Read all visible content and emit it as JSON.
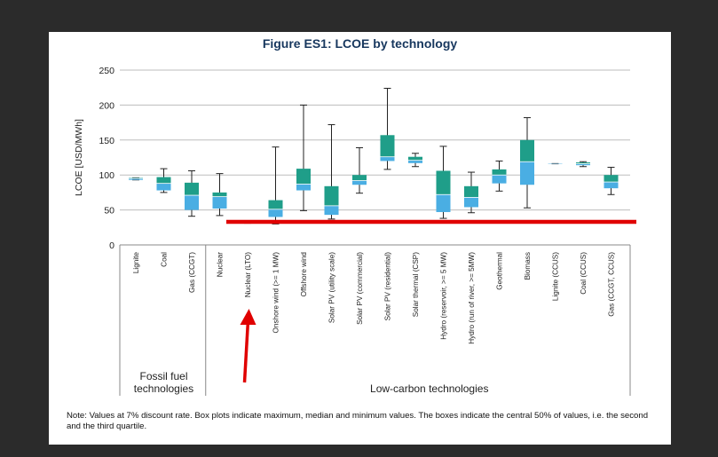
{
  "figure": {
    "title": "Figure ES1: LCOE by technology",
    "note": "Note: Values at 7% discount rate. Box plots indicate maximum, median and minimum values. The boxes indicate the central 50% of values, i.e. the second and the third quartile."
  },
  "chart_data": {
    "type": "box",
    "title": "Figure ES1: LCOE by technology",
    "ylabel": "LCOE [USD/MWh]",
    "xlabel": "",
    "ylim": [
      0,
      250
    ],
    "yticks": [
      0,
      50,
      100,
      150,
      200,
      250
    ],
    "grid": true,
    "colors": {
      "lower_box": "#4aaee3",
      "upper_box": "#1f9e89",
      "whisker": "#222222",
      "threshold_line": "#e00000",
      "arrow": "#e00000",
      "title": "#17375e"
    },
    "groups": [
      {
        "label": "Fossil fuel technologies",
        "start": 0,
        "end": 2
      },
      {
        "label": "Low-carbon technologies",
        "start": 3,
        "end": 18
      }
    ],
    "categories": [
      "Lignite",
      "Coal",
      "Gas (CCGT)",
      "Nuclear",
      "Nuclear (LTO)",
      "Onshore wind (>= 1 MW)",
      "Offshore wind",
      "Solar PV (utility scale)",
      "Solar PV (commercial)",
      "Solar PV (residential)",
      "Solar thermal (CSP)",
      "Hydro (reservoir, >= 5 MW)",
      "Hydro (run of river, >= 5MW)",
      "Geothermal",
      "Biomass",
      "Lignite (CCUS)",
      "Coal (CCUS)",
      "Gas (CCGT, CCUS)"
    ],
    "boxes": [
      {
        "min": 93,
        "q1": 93,
        "median": 95,
        "q3": 96,
        "max": 96
      },
      {
        "min": 75,
        "q1": 78,
        "median": 88,
        "q3": 97,
        "max": 109
      },
      {
        "min": 41,
        "q1": 50,
        "median": 71,
        "q3": 89,
        "max": 106
      },
      {
        "min": 42,
        "q1": 52,
        "median": 69,
        "q3": 75,
        "max": 102
      },
      {
        "min": 31,
        "q1": 31,
        "median": 32,
        "q3": 32,
        "max": 32
      },
      {
        "min": 30,
        "q1": 40,
        "median": 51,
        "q3": 64,
        "max": 140
      },
      {
        "min": 49,
        "q1": 78,
        "median": 87,
        "q3": 109,
        "max": 200
      },
      {
        "min": 37,
        "q1": 43,
        "median": 56,
        "q3": 84,
        "max": 172
      },
      {
        "min": 74,
        "q1": 86,
        "median": 92,
        "q3": 100,
        "max": 139
      },
      {
        "min": 108,
        "q1": 120,
        "median": 126,
        "q3": 157,
        "max": 224
      },
      {
        "min": 112,
        "q1": 117,
        "median": 121,
        "q3": 126,
        "max": 131
      },
      {
        "min": 38,
        "q1": 47,
        "median": 72,
        "q3": 106,
        "max": 141
      },
      {
        "min": 46,
        "q1": 54,
        "median": 68,
        "q3": 84,
        "max": 104
      },
      {
        "min": 77,
        "q1": 88,
        "median": 100,
        "q3": 108,
        "max": 120
      },
      {
        "min": 53,
        "q1": 86,
        "median": 119,
        "q3": 150,
        "max": 182
      },
      {
        "min": 116,
        "q1": 116,
        "median": 117,
        "q3": 117,
        "max": 117
      },
      {
        "min": 112,
        "q1": 114,
        "median": 116,
        "q3": 118,
        "max": 119
      },
      {
        "min": 72,
        "q1": 81,
        "median": 90,
        "q3": 100,
        "max": 111
      }
    ],
    "threshold_line_value": 33,
    "arrow_target": "Nuclear (LTO)"
  }
}
